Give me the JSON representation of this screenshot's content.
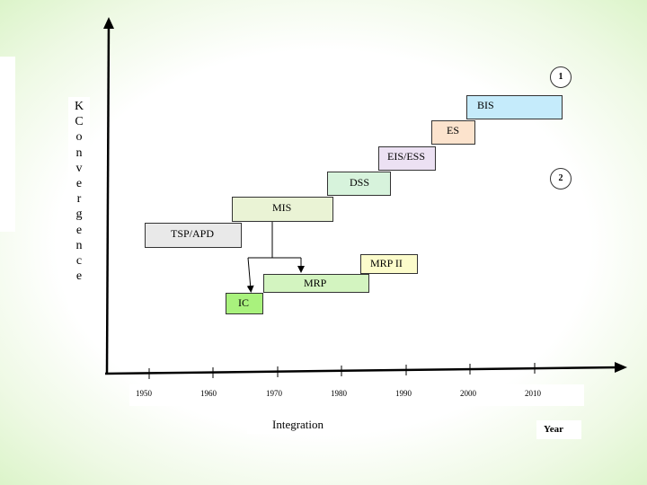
{
  "y_axis_label_letters": [
    "K",
    "C",
    "o",
    "n",
    "v",
    "e",
    "r",
    "g",
    "e",
    "n",
    "c",
    "e"
  ],
  "x_axis_label": "Integration",
  "year_label": "Year",
  "years": [
    "1950",
    "1960",
    "1970",
    "1980",
    "1990",
    "2000",
    "2010"
  ],
  "markers": {
    "one": "1",
    "two": "2"
  },
  "systems": {
    "bis": "BIS",
    "es": "ES",
    "eis_ess": "EIS/ESS",
    "dss": "DSS",
    "mis": "MIS",
    "tsp_apd": "TSP/APD",
    "mrp_ii": "MRP II",
    "mrp": "MRP",
    "ic": "IC"
  },
  "colors": {
    "bis": "#c5ebfb",
    "es": "#fce3cd",
    "eis_ess": "#ece1f3",
    "dss": "#d7f3dc",
    "mis": "#eaf3d5",
    "tsp_apd": "#e9e9e9",
    "mrp_ii": "#fcfccb",
    "mrp": "#d3f4c0",
    "ic": "#a9f27d"
  }
}
